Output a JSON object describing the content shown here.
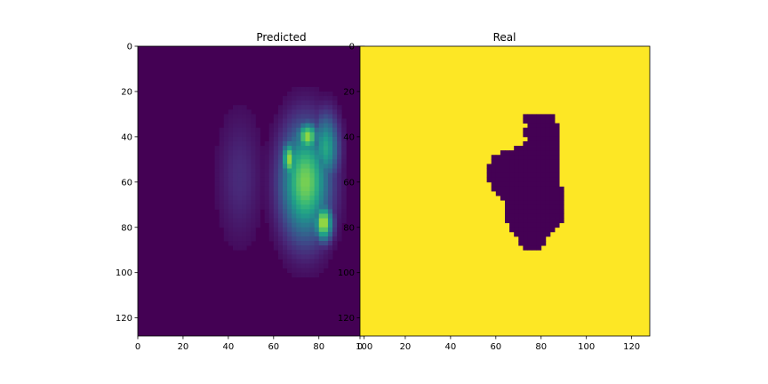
{
  "chart_data": [
    {
      "type": "heatmap",
      "title": "Predicted",
      "xlabel": "",
      "ylabel": "",
      "image_size": [
        128,
        128
      ],
      "xlim": [
        0,
        128
      ],
      "ylim": [
        128,
        0
      ],
      "xticks": [
        0,
        20,
        40,
        60,
        80,
        100
      ],
      "yticks": [
        0,
        20,
        40,
        60,
        80,
        100,
        120
      ],
      "colormap": "viridis",
      "background_value": 0.0,
      "blobs": [
        {
          "cx": 74,
          "cy": 60,
          "rx": 13,
          "ry": 30,
          "value": 0.8
        },
        {
          "cx": 67,
          "cy": 50,
          "rx": 4,
          "ry": 10,
          "value": 0.85
        },
        {
          "cx": 75,
          "cy": 40,
          "rx": 6,
          "ry": 8,
          "value": 0.85
        },
        {
          "cx": 82,
          "cy": 78,
          "rx": 5,
          "ry": 10,
          "value": 0.9
        },
        {
          "cx": 83,
          "cy": 45,
          "rx": 7,
          "ry": 18,
          "value": 0.6
        },
        {
          "cx": 45,
          "cy": 58,
          "rx": 12,
          "ry": 35,
          "value": 0.12
        }
      ]
    },
    {
      "type": "heatmap",
      "title": "Real",
      "xlabel": "",
      "ylabel": "",
      "image_size": [
        128,
        128
      ],
      "xlim": [
        0,
        128
      ],
      "ylim": [
        128,
        0
      ],
      "xticks": [
        0,
        20,
        40,
        60,
        80,
        100,
        120
      ],
      "yticks": [
        0,
        20,
        40,
        60,
        80,
        100,
        120
      ],
      "colormap": "viridis",
      "background_value": 1.0,
      "foreground_value": 0.0,
      "mask_outline": [
        [
          72,
          30
        ],
        [
          85,
          30
        ],
        [
          88,
          36
        ],
        [
          87,
          40
        ],
        [
          88,
          56
        ],
        [
          89,
          62
        ],
        [
          90,
          76
        ],
        [
          87,
          80
        ],
        [
          84,
          83
        ],
        [
          82,
          86
        ],
        [
          80,
          89
        ],
        [
          76,
          91
        ],
        [
          72,
          90
        ],
        [
          70,
          86
        ],
        [
          67,
          82
        ],
        [
          65,
          78
        ],
        [
          64,
          72
        ],
        [
          63,
          68
        ],
        [
          61,
          66
        ],
        [
          58,
          62
        ],
        [
          56,
          56
        ],
        [
          57,
          52
        ],
        [
          58,
          48
        ],
        [
          63,
          47
        ],
        [
          68,
          45
        ],
        [
          72,
          43
        ],
        [
          74,
          41
        ],
        [
          70,
          38
        ],
        [
          74,
          35
        ],
        [
          72,
          33
        ]
      ]
    }
  ]
}
